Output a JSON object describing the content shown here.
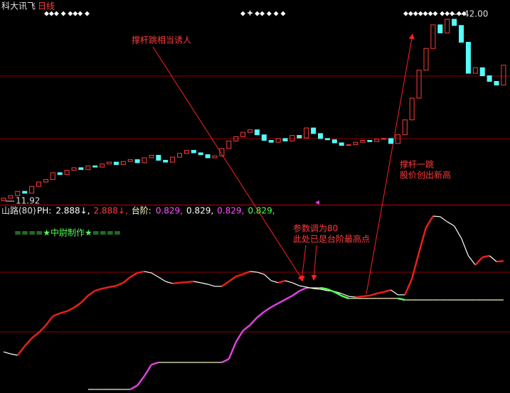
{
  "header": {
    "stock": "科大讯飞",
    "period": "日线"
  },
  "chart_data": [
    {
      "type": "candlestick",
      "open": [
        12.0,
        12.4,
        12.8,
        13.5,
        13.2,
        14.3,
        15.0,
        15.4,
        16.5,
        16.2,
        16.9,
        17.3,
        17.0,
        17.6,
        17.4,
        17.9,
        18.2,
        17.8,
        18.3,
        18.6,
        18.1,
        18.9,
        19.3,
        18.5,
        18.2,
        19.0,
        19.6,
        20.1,
        19.7,
        19.4,
        18.9,
        19.2,
        20.4,
        21.6,
        22.3,
        23.0,
        23.4,
        22.6,
        21.7,
        21.4,
        22.0,
        21.6,
        22.5,
        22.1,
        23.7,
        22.8,
        22.0,
        21.8,
        21.3,
        20.9,
        21.0,
        21.4,
        21.7,
        21.5,
        21.9,
        22.0,
        21.2,
        22.6,
        25.0,
        28.5,
        33.0,
        36.5,
        40.3,
        39.0,
        41.2,
        40.2,
        37.5,
        32.5,
        33.4,
        32.1,
        31.2,
        30.6
      ],
      "close": [
        12.4,
        12.8,
        13.5,
        13.2,
        14.3,
        15.0,
        15.4,
        16.5,
        16.2,
        16.9,
        17.3,
        17.0,
        17.6,
        17.4,
        17.9,
        18.2,
        17.8,
        18.3,
        18.6,
        18.1,
        18.9,
        19.3,
        18.5,
        18.2,
        19.0,
        19.6,
        20.1,
        19.7,
        19.4,
        18.9,
        19.2,
        20.4,
        21.6,
        22.3,
        23.0,
        23.4,
        22.6,
        21.7,
        21.4,
        22.0,
        21.6,
        22.5,
        22.1,
        23.7,
        22.8,
        22.0,
        21.8,
        21.3,
        20.9,
        21.0,
        21.4,
        21.7,
        21.5,
        21.9,
        22.0,
        21.2,
        22.6,
        25.0,
        28.5,
        33.0,
        36.5,
        40.3,
        39.0,
        41.2,
        40.2,
        37.5,
        32.5,
        33.4,
        32.1,
        31.2,
        30.6,
        33.8
      ],
      "ylim": [
        11.35,
        44.3
      ],
      "up_color": "#ff3c3c",
      "down_color": "#54ffff",
      "low_marker": 11.92,
      "high_marker": {
        "value": 42,
        "label": "42.00"
      },
      "annotations": [
        "撑杆跳相当诱人",
        "撑杆一跳",
        "股价创出新高"
      ]
    },
    {
      "type": "line",
      "title": "山路(80)",
      "readout": [
        {
          "text": "2.888↓,",
          "color": "#ffffff"
        },
        {
          "text": "2.888↓,",
          "color": "#ff3c3c"
        },
        {
          "text": "0.829,",
          "color": "#ff50ff"
        },
        {
          "text": "0.829,",
          "color": "#ffffff"
        },
        {
          "text": "0.829,",
          "color": "#ff50ff"
        },
        {
          "text": "0.829,",
          "color": "#54ff54"
        }
      ],
      "subtitle": "====★中尉制作★====",
      "annotations": [
        "参数调为80",
        "此处已是台阶最高点"
      ],
      "ylim": [
        -4.1,
        5.8
      ],
      "series": [
        {
          "name": "PH:",
          "color": "#ffffff",
          "up_color": "#e8201c",
          "values": [
            -1.92,
            -2.03,
            -2.1,
            -1.62,
            -1.2,
            -0.9,
            -0.52,
            -0.03,
            0.12,
            0.23,
            0.42,
            0.68,
            1.06,
            1.32,
            1.43,
            1.51,
            1.58,
            1.74,
            2.04,
            2.26,
            2.34,
            2.26,
            2.04,
            1.81,
            1.7,
            1.74,
            1.77,
            1.81,
            1.74,
            1.66,
            1.55,
            1.55,
            1.81,
            2.07,
            2.19,
            2.34,
            2.3,
            2.19,
            1.85,
            1.74,
            1.85,
            1.74,
            1.58,
            1.51,
            1.43,
            1.4,
            1.32,
            1.28,
            1.17,
            1.02,
            0.98,
            1.02,
            1.06,
            1.17,
            1.25,
            1.36,
            1.1,
            1.1,
            1.96,
            3.35,
            4.67,
            5.27,
            5.24,
            4.97,
            4.75,
            4.11,
            3.17,
            2.68,
            3.09,
            3.17,
            2.86,
            2.888
          ]
        },
        {
          "name": "台阶:",
          "color": "#ffffcc",
          "up_color": "#e040e0",
          "down_color": "#54ff54",
          "values": [
            null,
            null,
            null,
            null,
            null,
            null,
            null,
            null,
            null,
            null,
            null,
            null,
            -3.91,
            -3.91,
            -3.91,
            -3.91,
            -3.91,
            -3.91,
            -3.91,
            -3.7,
            -3.2,
            -2.6,
            -2.48,
            -2.48,
            -2.48,
            -2.48,
            -2.48,
            -2.48,
            -2.48,
            -2.48,
            -2.48,
            -2.48,
            -2.3,
            -1.4,
            -0.8,
            -0.5,
            -0.1,
            0.2,
            0.45,
            0.65,
            0.85,
            1.05,
            1.3,
            1.47,
            1.47,
            1.47,
            1.4,
            1.25,
            1.05,
            0.91,
            0.91,
            0.91,
            0.91,
            0.91,
            0.91,
            0.91,
            0.91,
            0.829,
            0.829,
            0.829,
            0.829,
            0.829,
            0.829,
            0.829,
            0.829,
            0.829,
            0.829,
            0.829,
            0.829,
            0.829,
            0.829,
            0.829
          ]
        }
      ]
    }
  ]
}
